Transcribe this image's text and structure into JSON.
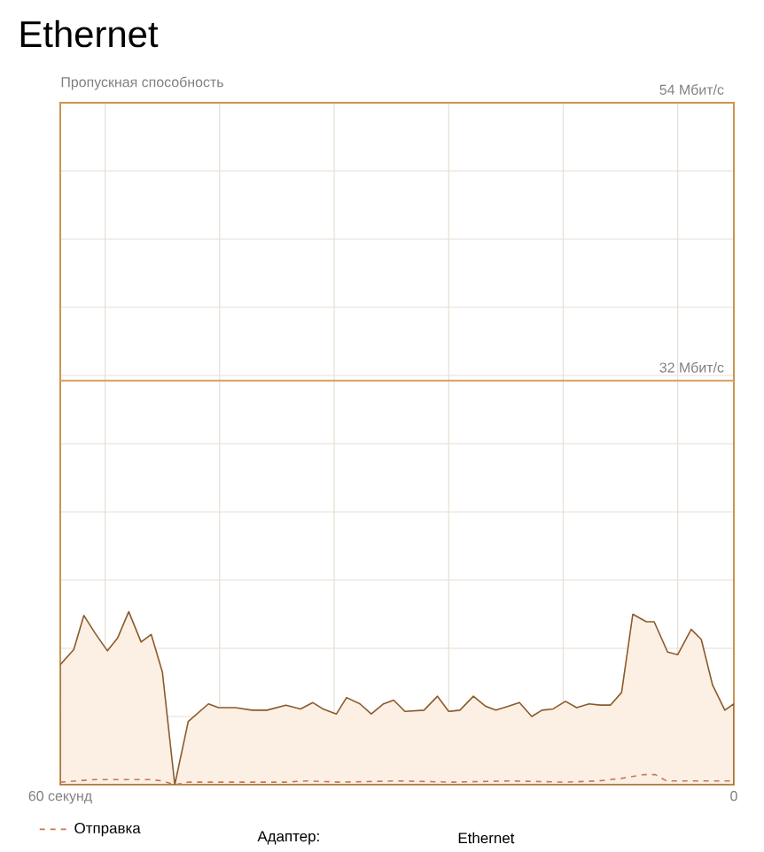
{
  "chart_data": {
    "type": "area",
    "title": "Ethernet",
    "ylabel": "Пропускная способность",
    "xlim": [
      60,
      0
    ],
    "xticks": [
      {
        "value": 60,
        "label": "60 секунд"
      },
      {
        "value": 56,
        "label": null
      },
      {
        "value": 45.8,
        "label": null
      },
      {
        "value": 35.6,
        "label": null
      },
      {
        "value": 25.4,
        "label": null
      },
      {
        "value": 15.2,
        "label": null
      },
      {
        "value": 5,
        "label": null
      },
      {
        "value": 0,
        "label": "0"
      }
    ],
    "ylim": [
      0,
      54
    ],
    "yticks": [
      {
        "value": 0,
        "label": null
      },
      {
        "value": 5.4,
        "label": null
      },
      {
        "value": 10.8,
        "label": null
      },
      {
        "value": 16.2,
        "label": null
      },
      {
        "value": 21.6,
        "label": null
      },
      {
        "value": 27,
        "label": null
      },
      {
        "value": 32,
        "label": "32 Мбит/с"
      },
      {
        "value": 32.4,
        "label": null
      },
      {
        "value": 37.8,
        "label": null
      },
      {
        "value": 43.2,
        "label": null
      },
      {
        "value": 48.6,
        "label": null
      },
      {
        "value": 54,
        "label": "54 Мбит/с"
      }
    ],
    "grid": true,
    "legend": "bottom",
    "ref_lines": [
      {
        "axis": "y",
        "value": 32,
        "color": "#d9a06a"
      }
    ],
    "series": [
      {
        "color": "#fcefe3",
        "x": [
          60,
          58.8,
          57.9,
          56.9,
          55.8,
          54.9,
          53.9,
          52.8,
          51.9,
          50.9,
          49.8,
          48.6,
          46.8,
          45.9,
          44.4,
          42.9,
          41.6,
          39.9,
          38.6,
          37.5,
          36.6,
          35.4,
          34.5,
          33.3,
          32.3,
          31.2,
          30.3,
          29.3,
          27.6,
          26.4,
          25.4,
          24.4,
          23.2,
          22.1,
          21.2,
          20.1,
          19.1,
          18.0,
          17.1,
          16.1,
          15.0,
          14.0,
          12.9,
          11.9,
          11.0,
          10.0,
          9.0,
          7.8,
          7.1,
          5.9,
          5.0,
          3.8,
          2.9,
          1.9,
          0.8,
          0
        ],
        "values": [
          9.5,
          10.7,
          13.4,
          12.0,
          10.6,
          11.6,
          13.7,
          11.3,
          11.9,
          8.9,
          0,
          5.0,
          6.4,
          6.1,
          6.1,
          5.9,
          5.9,
          6.3,
          6.0,
          6.5,
          6.0,
          5.6,
          6.9,
          6.4,
          5.6,
          6.4,
          6.7,
          5.8,
          5.9,
          7.0,
          5.8,
          5.9,
          7.0,
          6.2,
          5.9,
          6.2,
          6.5,
          5.4,
          5.9,
          6.0,
          6.6,
          6.1,
          6.4,
          6.3,
          6.3,
          7.3,
          13.5,
          12.9,
          12.9,
          10.5,
          10.3,
          12.3,
          11.5,
          7.9,
          5.9,
          6.4
        ]
      },
      {
        "type": "line",
        "name": "Отправка",
        "color": "#c87850",
        "line_style": "dashed",
        "x": [
          60,
          57,
          52,
          50.9,
          49.8,
          48.6,
          40,
          38,
          35,
          30,
          25,
          20,
          15,
          12,
          10,
          8,
          7,
          6,
          0
        ],
        "values": [
          0.2,
          0.4,
          0.4,
          0.3,
          0,
          0.2,
          0.2,
          0.3,
          0.2,
          0.3,
          0.2,
          0.3,
          0.2,
          0.3,
          0.5,
          0.8,
          0.8,
          0.3,
          0.3
        ]
      }
    ],
    "annotations": [
      "Адаптер:",
      "Ethernet"
    ]
  }
}
